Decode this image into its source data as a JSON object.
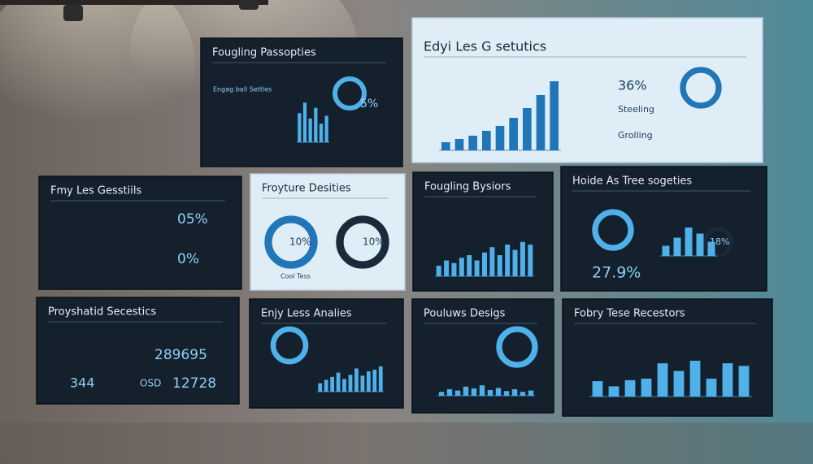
{
  "panels": [
    {
      "title": "Fougling Passopties",
      "texts": [
        "Engag ball Settles",
        "5%"
      ],
      "bars": [
        55,
        75,
        45,
        65,
        35,
        50
      ]
    },
    {
      "title": "Edyi Les G setutics",
      "texts": [
        "36%",
        "Steeling",
        "Grolling"
      ],
      "bars": [
        10,
        14,
        18,
        24,
        30,
        40,
        52,
        68,
        85
      ]
    },
    {
      "title": "Fmy Les Gesstiils",
      "texts": [
        "05%",
        "0%"
      ]
    },
    {
      "title": "Froyture Desities",
      "texts": [
        "10%",
        "10%",
        "Cool Tess"
      ]
    },
    {
      "title": "Fougling Bysiors",
      "texts": [],
      "bars": [
        20,
        30,
        25,
        35,
        40,
        30,
        45,
        55,
        40,
        60,
        50,
        65,
        60
      ]
    },
    {
      "title": "Hoide As Tree sogeties",
      "texts": [
        "27.9%",
        "18%"
      ],
      "bars": [
        25,
        45,
        70,
        55,
        35
      ]
    },
    {
      "title": "Proyshatid Secestics",
      "texts": [
        "289695",
        "344",
        "OSD",
        "12728"
      ]
    },
    {
      "title": "Enjy Less Analies",
      "texts": [],
      "bars": [
        20,
        28,
        35,
        45,
        30,
        40,
        55,
        38,
        48,
        52,
        60
      ]
    },
    {
      "title": "Pouluws Desigs",
      "texts": [],
      "bars": [
        15,
        25,
        20,
        35,
        28,
        40,
        22,
        30,
        18,
        25,
        15,
        20
      ]
    },
    {
      "title": "Fobry Tese Recestors",
      "texts": [],
      "bars": [
        30,
        20,
        32,
        35,
        65,
        50,
        70,
        35,
        65,
        60
      ]
    }
  ]
}
